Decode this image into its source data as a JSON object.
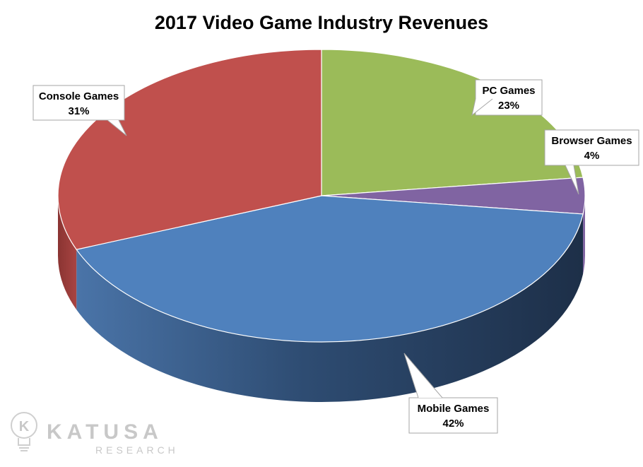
{
  "chart_data": {
    "type": "pie",
    "title": "2017 Video Game Industry Revenues",
    "slices": [
      {
        "label": "PC Games",
        "value": 23,
        "value_label": "23%",
        "color": "#9bbb59"
      },
      {
        "label": "Browser Games",
        "value": 4,
        "value_label": "4%",
        "color": "#8064a2"
      },
      {
        "label": "Mobile Games",
        "value": 42,
        "value_label": "42%",
        "color": "#4f81bd"
      },
      {
        "label": "Console Games",
        "value": 31,
        "value_label": "31%",
        "color": "#c0504d"
      }
    ],
    "style": "3d-tilted"
  },
  "watermark": {
    "brand": "KATUSA",
    "sub": "RESEARCH",
    "logo_letter": "K"
  }
}
